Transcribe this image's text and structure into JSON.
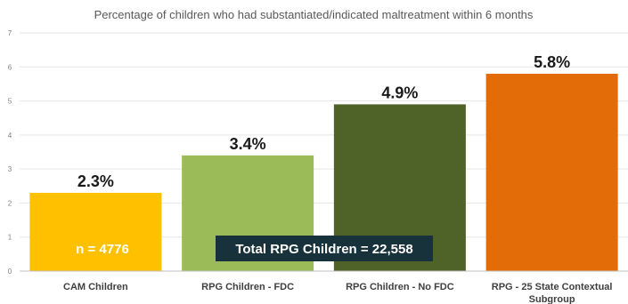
{
  "chart_data": {
    "type": "bar",
    "title": "Percentage of children who had substantiated/indicated maltreatment within 6 months",
    "categories": [
      [
        "CAM Children"
      ],
      [
        "RPG Children - FDC"
      ],
      [
        "RPG Children - No FDC"
      ],
      [
        "RPG - 25 State Contextual",
        "Subgroup"
      ]
    ],
    "values": [
      2.3,
      3.4,
      4.9,
      5.8
    ],
    "data_labels": [
      "2.3%",
      "3.4%",
      "4.9%",
      "5.8%"
    ],
    "colors": [
      "#ffc000",
      "#9bbb59",
      "#4f6228",
      "#e36c09"
    ],
    "ylim": [
      0,
      7
    ],
    "yticks": [
      0,
      1,
      2,
      3,
      4,
      5,
      6,
      7
    ],
    "grid": true,
    "annotations": {
      "n_label": "n = 4776",
      "total_label": "Total RPG Children = 22,558"
    }
  }
}
